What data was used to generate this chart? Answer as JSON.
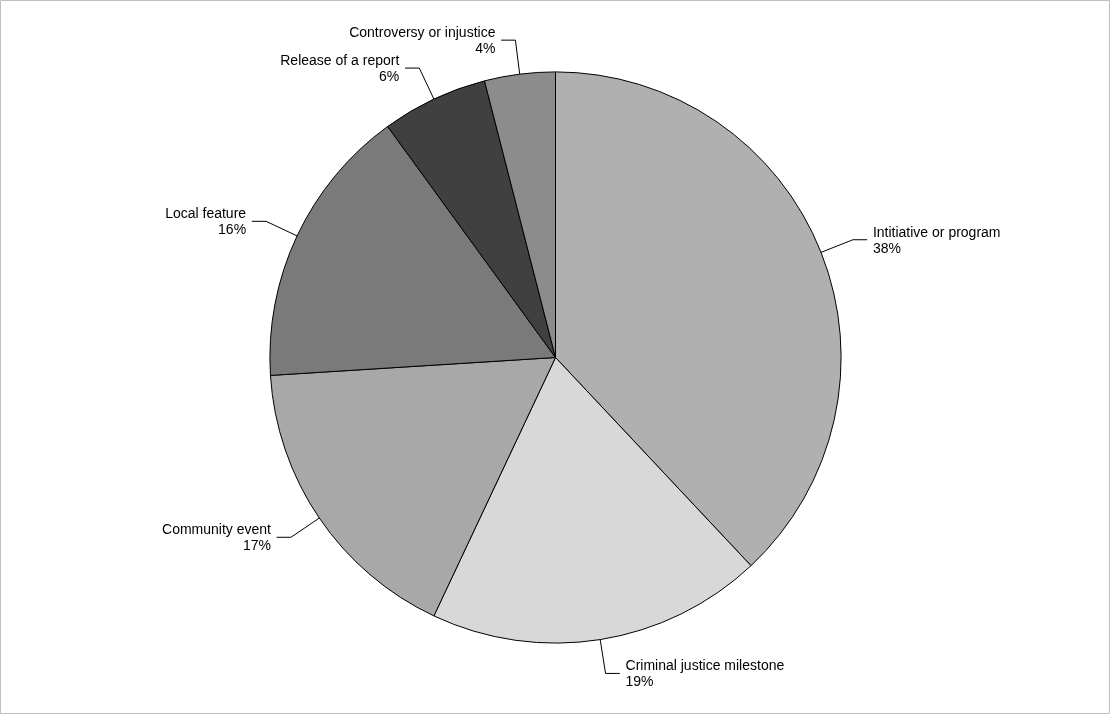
{
  "chart_data": {
    "type": "pie",
    "categories": [
      "Intitiative or program",
      "Criminal justice milestone",
      "Community event",
      "Local feature",
      "Release of a report",
      "Controversy or injustice"
    ],
    "values": [
      38,
      19,
      17,
      16,
      6,
      4
    ],
    "value_labels": [
      "38%",
      "19%",
      "17%",
      "16%",
      "6%",
      "4%"
    ],
    "colors": [
      "#b0b0b0",
      "#d8d8d8",
      "#a8a8a8",
      "#7a7a7a",
      "#404040",
      "#8c8c8c"
    ]
  }
}
